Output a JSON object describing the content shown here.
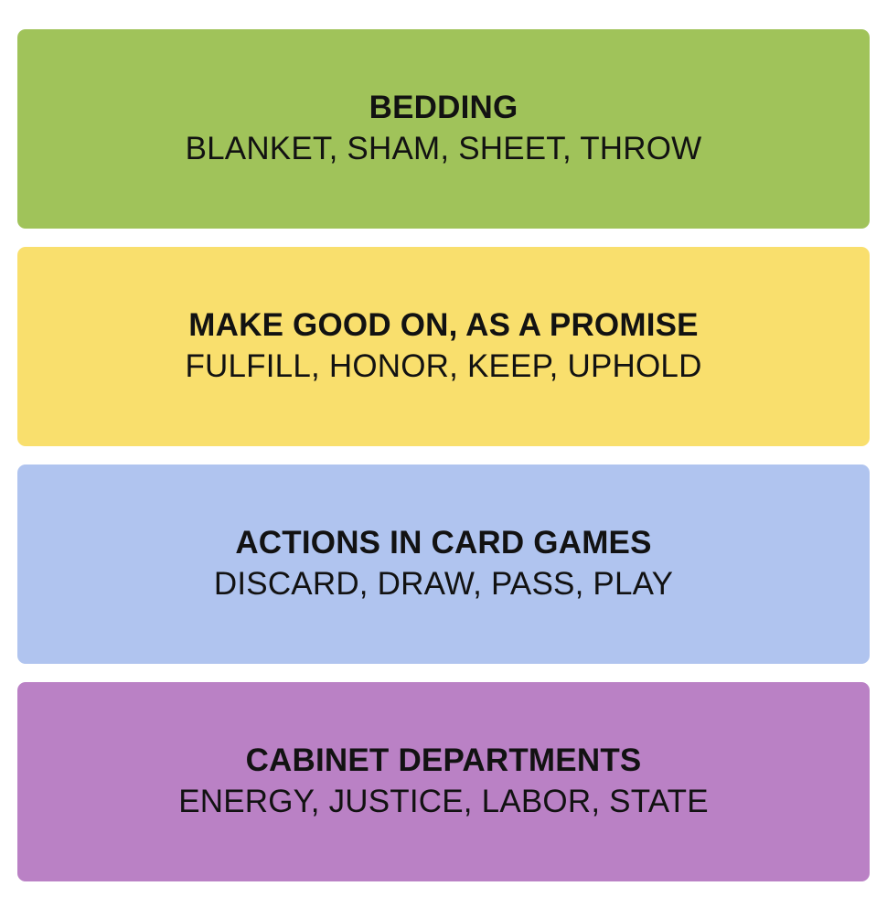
{
  "groups": [
    {
      "title": "BEDDING",
      "words": "BLANKET, SHAM, SHEET, THROW",
      "color": "#a0c35a"
    },
    {
      "title": "MAKE GOOD ON, AS A PROMISE",
      "words": "FULFILL, HONOR, KEEP, UPHOLD",
      "color": "#f9df6d"
    },
    {
      "title": "ACTIONS IN CARD GAMES",
      "words": "DISCARD, DRAW, PASS, PLAY",
      "color": "#b0c4ef"
    },
    {
      "title": "CABINET DEPARTMENTS",
      "words": "ENERGY, JUSTICE, LABOR, STATE",
      "color": "#ba81c5"
    }
  ]
}
